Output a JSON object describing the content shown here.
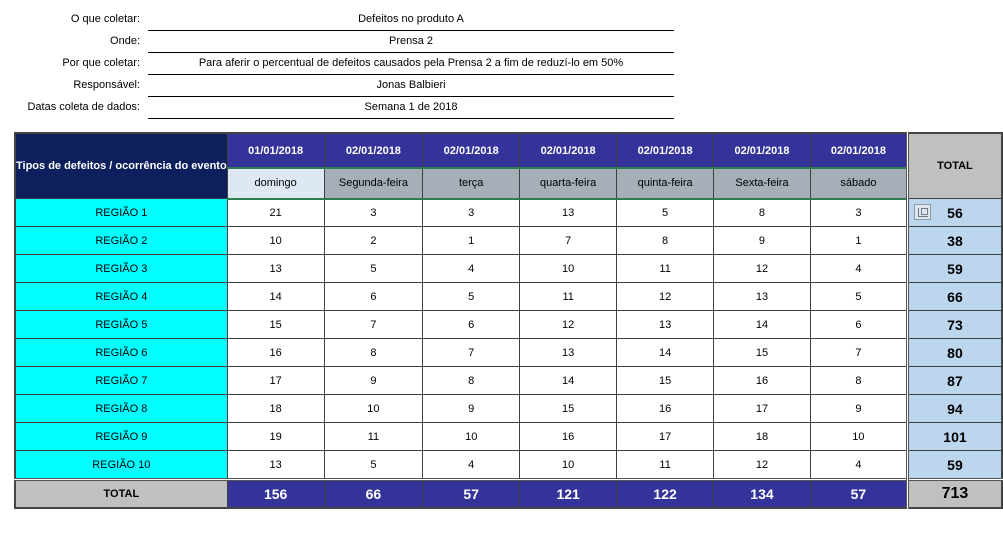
{
  "info": [
    {
      "label": "O que coletar:",
      "value": "Defeitos no produto A"
    },
    {
      "label": "Onde:",
      "value": "Prensa 2"
    },
    {
      "label": "Por que coletar:",
      "value": "Para aferir o percentual de defeitos causados pela Prensa 2 a fim de reduzí-lo em 50%"
    },
    {
      "label": "Responsável:",
      "value": "Jonas Balbieri"
    },
    {
      "label": "Datas coleta de dados:",
      "value": "Semana 1 de 2018"
    }
  ],
  "table": {
    "type_header": "Tipos de defeitos / ocorrência do evento",
    "total_header": "TOTAL",
    "dates": [
      "01/01/2018",
      "02/01/2018",
      "02/01/2018",
      "02/01/2018",
      "02/01/2018",
      "02/01/2018",
      "02/01/2018"
    ],
    "weekdays": [
      "domingo",
      "Segunda-feira",
      "terça",
      "quarta-feira",
      "quinta-feira",
      "Sexta-feira",
      "sábado"
    ],
    "rows": [
      {
        "label": "REGIÃO 1",
        "values": [
          "21",
          "3",
          "3",
          "13",
          "5",
          "8",
          "3"
        ],
        "total": "56"
      },
      {
        "label": "REGIÃO 2",
        "values": [
          "10",
          "2",
          "1",
          "7",
          "8",
          "9",
          "1"
        ],
        "total": "38"
      },
      {
        "label": "REGIÃO 3",
        "values": [
          "13",
          "5",
          "4",
          "10",
          "11",
          "12",
          "4"
        ],
        "total": "59"
      },
      {
        "label": "REGIÃO 4",
        "values": [
          "14",
          "6",
          "5",
          "11",
          "12",
          "13",
          "5"
        ],
        "total": "66"
      },
      {
        "label": "REGIÃO 5",
        "values": [
          "15",
          "7",
          "6",
          "12",
          "13",
          "14",
          "6"
        ],
        "total": "73"
      },
      {
        "label": "REGIÃO 6",
        "values": [
          "16",
          "8",
          "7",
          "13",
          "14",
          "15",
          "7"
        ],
        "total": "80"
      },
      {
        "label": "REGIÃO 7",
        "values": [
          "17",
          "9",
          "8",
          "14",
          "15",
          "16",
          "8"
        ],
        "total": "87"
      },
      {
        "label": "REGIÃO 8",
        "values": [
          "18",
          "10",
          "9",
          "15",
          "16",
          "17",
          "9"
        ],
        "total": "94"
      },
      {
        "label": "REGIÃO 9",
        "values": [
          "19",
          "11",
          "10",
          "16",
          "17",
          "18",
          "10"
        ],
        "total": "101"
      },
      {
        "label": "REGIÃO 10",
        "values": [
          "13",
          "5",
          "4",
          "10",
          "11",
          "12",
          "4"
        ],
        "total": "59"
      }
    ],
    "total_row": {
      "label": "TOTAL",
      "values": [
        "156",
        "66",
        "57",
        "121",
        "122",
        "134",
        "57"
      ],
      "grand_total": "713"
    }
  },
  "icons": {
    "first_total_cell": "paste-options-icon"
  },
  "colors": {
    "type_header_bg": "#0d1f5c",
    "date_header_bg": "#33339a",
    "region_bg": "#00ffff",
    "row_total_bg": "#bcd6ee",
    "total_header_bg": "#c0c0c0",
    "weekday_bg": "#a6aeb8"
  }
}
